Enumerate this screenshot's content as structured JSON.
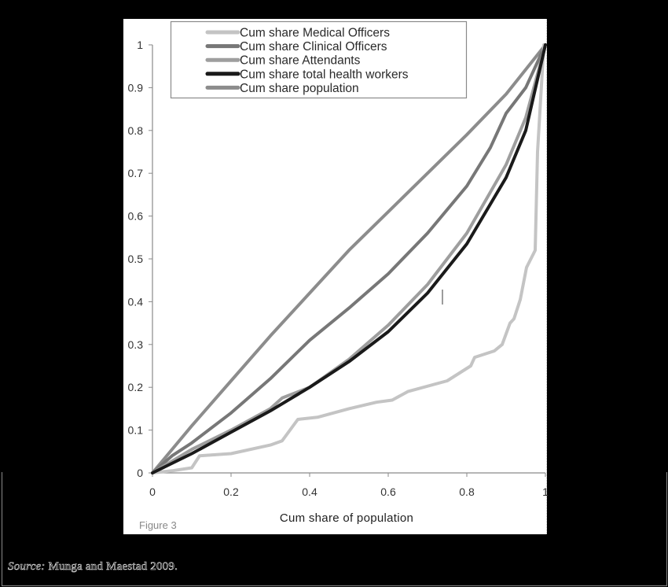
{
  "figure": {
    "label": "Figure 3",
    "source_label": "Source:",
    "source_text": "Munga and Maestad 2009."
  },
  "chart_data": {
    "type": "line",
    "title": "",
    "xlabel": "Cum share of population",
    "ylabel": "",
    "xlim": [
      0,
      1
    ],
    "ylim": [
      0,
      1
    ],
    "x_ticks": [
      "0",
      "0.2",
      "0.4",
      "0.6",
      "0.8",
      "1"
    ],
    "y_ticks": [
      "0",
      "0.1",
      "0.2",
      "0.3",
      "0.4",
      "0.5",
      "0.6",
      "0.7",
      "0.8",
      "0.9",
      "1"
    ],
    "grid": false,
    "legend_position": "top-inside",
    "series": [
      {
        "name": "Cum share Medical Officers",
        "color": "#c4c4c4",
        "width": 4,
        "points": [
          [
            0,
            0
          ],
          [
            0.05,
            0.005
          ],
          [
            0.1,
            0.012
          ],
          [
            0.12,
            0.04
          ],
          [
            0.2,
            0.045
          ],
          [
            0.3,
            0.065
          ],
          [
            0.33,
            0.075
          ],
          [
            0.37,
            0.125
          ],
          [
            0.42,
            0.13
          ],
          [
            0.5,
            0.15
          ],
          [
            0.57,
            0.165
          ],
          [
            0.61,
            0.17
          ],
          [
            0.65,
            0.19
          ],
          [
            0.75,
            0.215
          ],
          [
            0.81,
            0.25
          ],
          [
            0.82,
            0.27
          ],
          [
            0.87,
            0.285
          ],
          [
            0.89,
            0.3
          ],
          [
            0.91,
            0.35
          ],
          [
            0.92,
            0.36
          ],
          [
            0.936,
            0.405
          ],
          [
            0.952,
            0.48
          ],
          [
            0.974,
            0.52
          ],
          [
            0.98,
            0.75
          ],
          [
            0.996,
            1
          ]
        ]
      },
      {
        "name": "Cum share Clinical Officers",
        "color": "#777777",
        "width": 4,
        "points": [
          [
            0,
            0
          ],
          [
            0.05,
            0.04
          ],
          [
            0.1,
            0.07
          ],
          [
            0.2,
            0.14
          ],
          [
            0.3,
            0.22
          ],
          [
            0.4,
            0.31
          ],
          [
            0.5,
            0.385
          ],
          [
            0.6,
            0.465
          ],
          [
            0.7,
            0.56
          ],
          [
            0.8,
            0.67
          ],
          [
            0.86,
            0.76
          ],
          [
            0.9,
            0.84
          ],
          [
            0.95,
            0.9
          ],
          [
            1,
            1
          ]
        ]
      },
      {
        "name": "Cum share Attendants",
        "color": "#9e9e9e",
        "width": 4,
        "points": [
          [
            0,
            0
          ],
          [
            0.1,
            0.055
          ],
          [
            0.2,
            0.1
          ],
          [
            0.3,
            0.15
          ],
          [
            0.33,
            0.175
          ],
          [
            0.4,
            0.2
          ],
          [
            0.5,
            0.265
          ],
          [
            0.6,
            0.345
          ],
          [
            0.7,
            0.44
          ],
          [
            0.8,
            0.56
          ],
          [
            0.9,
            0.72
          ],
          [
            0.95,
            0.83
          ],
          [
            1,
            1
          ]
        ]
      },
      {
        "name": "Cum share total health workers",
        "color": "#1a1a1a",
        "width": 4,
        "points": [
          [
            0,
            0
          ],
          [
            0.1,
            0.045
          ],
          [
            0.2,
            0.095
          ],
          [
            0.3,
            0.145
          ],
          [
            0.4,
            0.2
          ],
          [
            0.5,
            0.26
          ],
          [
            0.6,
            0.33
          ],
          [
            0.7,
            0.42
          ],
          [
            0.8,
            0.535
          ],
          [
            0.9,
            0.69
          ],
          [
            0.95,
            0.8
          ],
          [
            1,
            1
          ]
        ]
      },
      {
        "name": "Cum share population",
        "color": "#8c8c8c",
        "width": 4,
        "points": [
          [
            0,
            0
          ],
          [
            0.1,
            0.11
          ],
          [
            0.2,
            0.215
          ],
          [
            0.3,
            0.32
          ],
          [
            0.4,
            0.42
          ],
          [
            0.5,
            0.52
          ],
          [
            0.6,
            0.61
          ],
          [
            0.7,
            0.7
          ],
          [
            0.8,
            0.79
          ],
          [
            0.9,
            0.885
          ],
          [
            1,
            1
          ]
        ]
      }
    ]
  }
}
